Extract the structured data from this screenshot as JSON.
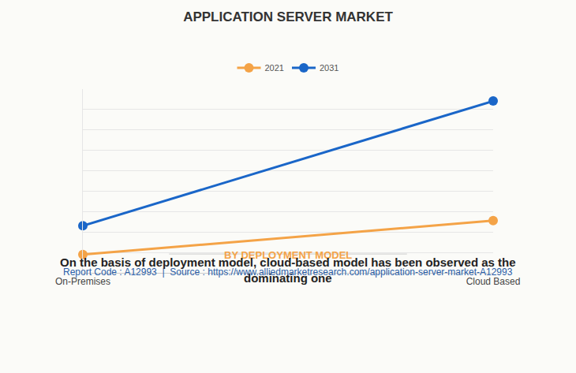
{
  "chart_data": {
    "type": "line",
    "title": "APPLICATION SERVER MARKET",
    "subtitle": "BY DEPLOYMENT MODEL",
    "categories": [
      "On-Premises",
      "Cloud Based"
    ],
    "series": [
      {
        "name": "2021",
        "color": "#f4a347",
        "values": [
          0.9,
          2.55
        ]
      },
      {
        "name": "2031",
        "color": "#1a66c8",
        "values": [
          2.3,
          8.4
        ]
      }
    ],
    "ylim": [
      0,
      9
    ],
    "yticks": [
      0,
      1,
      2,
      3,
      4,
      5,
      6,
      7,
      8,
      9
    ],
    "grid": true,
    "tick_labels": "x",
    "legend": "top",
    "marker": "circle",
    "annotations": [
      "On the basis of deployment model, cloud-based model has been observed as the dominating one",
      "Report Code : A12993  |  Source : https://www.alliedmarketresearch.com/application-server-market-A12993"
    ]
  }
}
